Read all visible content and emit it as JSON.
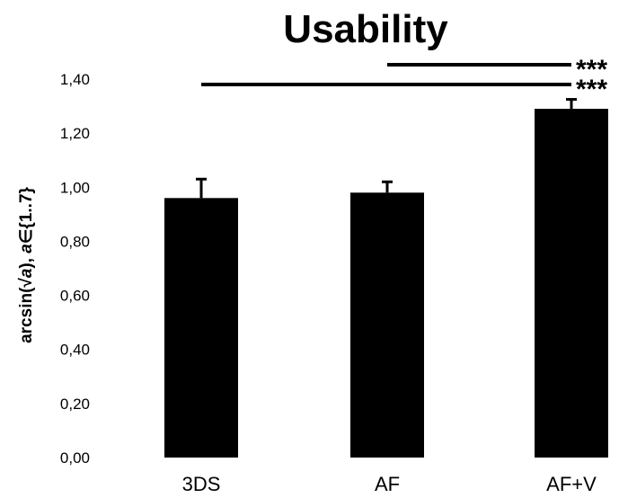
{
  "chart_data": {
    "type": "bar",
    "title": "Usability",
    "ylabel_parts": [
      "arcsin(√",
      "a",
      "), ",
      "a",
      "∈{1..7}"
    ],
    "categories": [
      "3DS",
      "AF",
      "AF+V"
    ],
    "values": [
      0.96,
      0.98,
      1.29
    ],
    "error": [
      0.07,
      0.04,
      0.035
    ],
    "ylim": [
      0,
      1.4
    ],
    "yticks": [
      "0,00",
      "0,20",
      "0,40",
      "0,60",
      "0,80",
      "1,00",
      "1,20",
      "1,40"
    ],
    "bar_color": "#000000",
    "significance": [
      {
        "from": "AF",
        "to": "AF+V",
        "label": "***"
      },
      {
        "from": "3DS",
        "to": "AF+V",
        "label": "***"
      }
    ]
  }
}
